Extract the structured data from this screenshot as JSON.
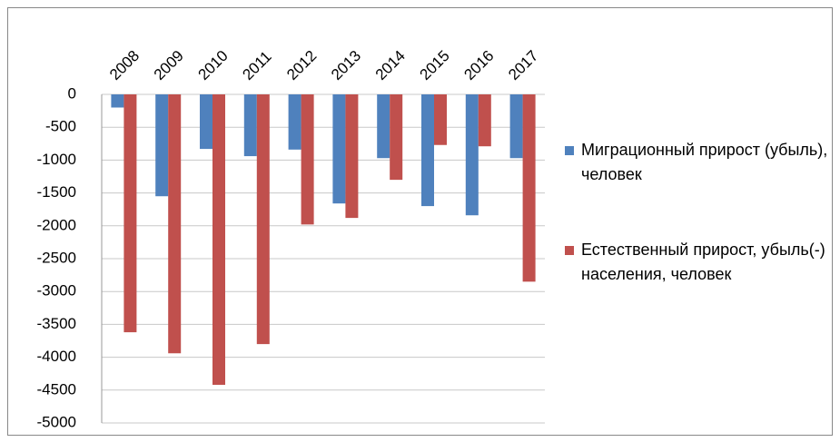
{
  "chart_data": {
    "type": "bar",
    "categories": [
      "2008",
      "2009",
      "2010",
      "2011",
      "2012",
      "2013",
      "2014",
      "2015",
      "2016",
      "2017"
    ],
    "series": [
      {
        "name": "Миграционный  прирост (убыль), человек",
        "color": "#4f81bd",
        "values": [
          -200,
          -1550,
          -830,
          -940,
          -840,
          -1660,
          -970,
          -1700,
          -1840,
          -970
        ]
      },
      {
        "name": "Естественный прирост, убыль(-) населения, человек",
        "color": "#c0504d",
        "values": [
          -3620,
          -3940,
          -4420,
          -3800,
          -1980,
          -1880,
          -1300,
          -770,
          -790,
          -2850
        ]
      }
    ],
    "ylim": [
      -5000,
      0
    ],
    "yticks": [
      0,
      -500,
      -1000,
      -1500,
      -2000,
      -2500,
      -3000,
      -3500,
      -4000,
      -4500,
      -5000
    ],
    "grid": true,
    "legend": "right"
  }
}
